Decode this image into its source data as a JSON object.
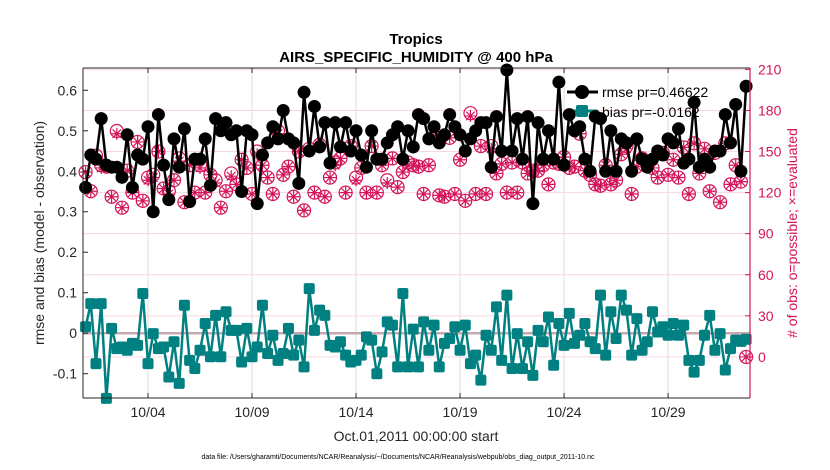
{
  "chart_data": {
    "type": "line",
    "title": [
      "Tropics",
      "AIRS_SPECIFIC_HUMIDITY @ 400 hPa"
    ],
    "xlabel": "Oct.01,2011 00:00:00 start",
    "ylabel": "rmse and bias (model - observation)",
    "ylabel_right": "# of obs: o=possible; ×=evaluated",
    "footnote": "data file: /Users/gharamti/Documents/NCAR/Reanalysis/~/Documents/NCAR/Reanalysis/webpub/obs_diag_output_2011-10.nc",
    "x_start": "2011-10-01 00:00",
    "x_step_hours": 6,
    "xlim": [
      "2011-09-30 21:00",
      "2011-11-01 22:30"
    ],
    "ylim": [
      -0.16,
      0.655
    ],
    "ylim_right": [
      -30,
      211
    ],
    "x_ticks": [
      {
        "label": "10/04",
        "day": 3
      },
      {
        "label": "10/09",
        "day": 8
      },
      {
        "label": "10/14",
        "day": 13
      },
      {
        "label": "10/19",
        "day": 18
      },
      {
        "label": "10/24",
        "day": 23
      },
      {
        "label": "10/29",
        "day": 28
      }
    ],
    "y_ticks": [
      "-0.1",
      "0",
      "0.1",
      "0.2",
      "0.3",
      "0.4",
      "0.5",
      "0.6"
    ],
    "y_ticks_right": [
      "0",
      "30",
      "60",
      "90",
      "120",
      "150",
      "180",
      "210"
    ],
    "grid": true,
    "legend_placement": "top-right",
    "colors": {
      "rmse": "#000000",
      "bias": "#008080",
      "counts": "#d4145a",
      "zero_line": "#c8a8b0"
    },
    "series": [
      {
        "name": "rmse pr=0.46622",
        "axis": "left",
        "marker": "circle",
        "values": [
          0.36,
          0.44,
          0.43,
          0.53,
          0.415,
          0.41,
          0.41,
          0.385,
          0.49,
          0.36,
          0.44,
          0.43,
          0.51,
          0.3,
          0.54,
          0.415,
          0.33,
          0.48,
          0.41,
          0.505,
          0.325,
          0.43,
          0.43,
          0.48,
          0.365,
          0.53,
          0.5,
          0.52,
          0.49,
          0.5,
          0.35,
          0.5,
          0.49,
          0.32,
          0.44,
          0.47,
          0.51,
          0.48,
          0.55,
          0.48,
          0.47,
          0.37,
          0.595,
          0.45,
          0.56,
          0.46,
          0.52,
          0.42,
          0.52,
          0.46,
          0.52,
          0.45,
          0.5,
          0.44,
          0.41,
          0.5,
          0.43,
          0.43,
          0.47,
          0.49,
          0.51,
          0.43,
          0.5,
          0.46,
          0.54,
          0.53,
          0.48,
          0.51,
          0.47,
          0.49,
          0.54,
          0.51,
          0.49,
          0.45,
          0.48,
          0.5,
          0.52,
          0.52,
          0.41,
          0.535,
          0.45,
          0.65,
          0.45,
          0.53,
          0.43,
          0.535,
          0.32,
          0.52,
          0.43,
          0.5,
          0.43,
          0.62,
          0.415,
          0.54,
          0.5,
          0.51,
          0.43,
          0.4,
          0.535,
          0.53,
          0.4,
          0.5,
          0.4,
          0.48,
          0.47,
          0.4,
          0.48,
          0.43,
          0.41,
          0.43,
          0.45,
          0.44,
          0.48,
          0.47,
          0.505,
          0.42,
          0.43,
          0.57,
          0.41,
          0.43,
          0.41,
          0.45,
          0.45,
          0.54,
          0.47,
          0.565,
          0.4,
          0.61
        ]
      },
      {
        "name": "bias pr=-0.0162",
        "axis": "left",
        "marker": "square",
        "values": [
          0.016,
          0.073,
          -0.075,
          0.073,
          -0.161,
          0.012,
          -0.038,
          -0.034,
          -0.042,
          -0.025,
          -0.03,
          0.098,
          -0.075,
          -0.001,
          -0.038,
          -0.034,
          -0.108,
          -0.021,
          -0.124,
          0.069,
          -0.067,
          -0.087,
          -0.042,
          0.024,
          -0.058,
          0.044,
          -0.058,
          0.053,
          0.007,
          0.007,
          -0.071,
          0.012,
          -0.058,
          -0.034,
          0.069,
          -0.05,
          -0.005,
          -0.067,
          -0.05,
          0.012,
          -0.054,
          -0.017,
          -0.083,
          0.11,
          0.007,
          0.057,
          0.044,
          -0.03,
          -0.034,
          -0.021,
          -0.054,
          -0.071,
          -0.067,
          -0.054,
          -0.009,
          -0.017,
          -0.1,
          -0.046,
          0.028,
          0.02,
          -0.083,
          0.098,
          -0.083,
          0.01,
          -0.083,
          0.028,
          -0.042,
          0.02,
          -0.083,
          -0.025,
          -0.013,
          0.016,
          -0.042,
          0.02,
          -0.075,
          -0.054,
          -0.116,
          -0.005,
          -0.042,
          0.065,
          -0.067,
          0.094,
          -0.087,
          -0.001,
          -0.087,
          -0.021,
          -0.104,
          0.007,
          -0.021,
          0.04,
          -0.079,
          0.024,
          -0.03,
          0.049,
          -0.025,
          -0.005,
          0.024,
          -0.021,
          -0.038,
          0.094,
          -0.054,
          0.053,
          -0.013,
          0.094,
          0.057,
          -0.054,
          0.036,
          -0.042,
          -0.021,
          0.053,
          0.003,
          0.016,
          -0.005,
          0.024,
          -0.005,
          0.02,
          -0.067,
          -0.096,
          -0.067,
          -0.005,
          0.044,
          -0.042,
          -0.001,
          -0.091,
          -0.038,
          -0.017,
          -0.02,
          -0.015
        ]
      },
      {
        "name": "possible",
        "axis": "right",
        "marker": "open-circle",
        "values": [
          135,
          121,
          147,
          140,
          139,
          117,
          165,
          109,
          136,
          120,
          157,
          114,
          131,
          133,
          150,
          123,
          121,
          129,
          145,
          113,
          140,
          120,
          140,
          120,
          133,
          129,
          109,
          121,
          134,
          126,
          144,
          138,
          119,
          150,
          140,
          131,
          119,
          165,
          133,
          139,
          117,
          150,
          107,
          152,
          120,
          155,
          117,
          131,
          142,
          145,
          120,
          154,
          131,
          138,
          120,
          154,
          120,
          140,
          129,
          145,
          124,
          135,
          142,
          140,
          139,
          119,
          140,
          161,
          118,
          117,
          160,
          119,
          144,
          114,
          178,
          119,
          154,
          119,
          154,
          134,
          141,
          120,
          142,
          120,
          142,
          134,
          136,
          136,
          140,
          126,
          142,
          141,
          146,
          138,
          139,
          163,
          136,
          133,
          126,
          125,
          140,
          126,
          129,
          148,
          154,
          119,
          139,
          145,
          141,
          138,
          131,
          149,
          133,
          144,
          131,
          153,
          119,
          156,
          134,
          152,
          121,
          149,
          113,
          156,
          126,
          140,
          128,
          0
        ]
      },
      {
        "name": "evaluated",
        "axis": "right",
        "marker": "asterisk",
        "values": [
          135,
          121,
          145,
          138,
          139,
          117,
          163,
          109,
          136,
          120,
          157,
          114,
          129,
          131,
          150,
          123,
          119,
          129,
          143,
          113,
          140,
          120,
          138,
          120,
          133,
          127,
          109,
          121,
          132,
          126,
          144,
          138,
          119,
          148,
          140,
          131,
          119,
          163,
          133,
          139,
          117,
          150,
          107,
          150,
          120,
          155,
          117,
          131,
          140,
          145,
          120,
          154,
          129,
          138,
          120,
          154,
          120,
          140,
          127,
          145,
          124,
          135,
          140,
          140,
          139,
          119,
          140,
          161,
          118,
          117,
          160,
          119,
          144,
          114,
          176,
          119,
          154,
          119,
          152,
          134,
          141,
          120,
          142,
          120,
          142,
          134,
          136,
          136,
          140,
          126,
          142,
          141,
          146,
          138,
          139,
          163,
          136,
          133,
          126,
          125,
          140,
          126,
          129,
          148,
          152,
          119,
          139,
          145,
          141,
          138,
          131,
          149,
          133,
          144,
          131,
          153,
          119,
          156,
          134,
          152,
          121,
          149,
          113,
          156,
          126,
          140,
          128,
          0
        ]
      }
    ]
  }
}
